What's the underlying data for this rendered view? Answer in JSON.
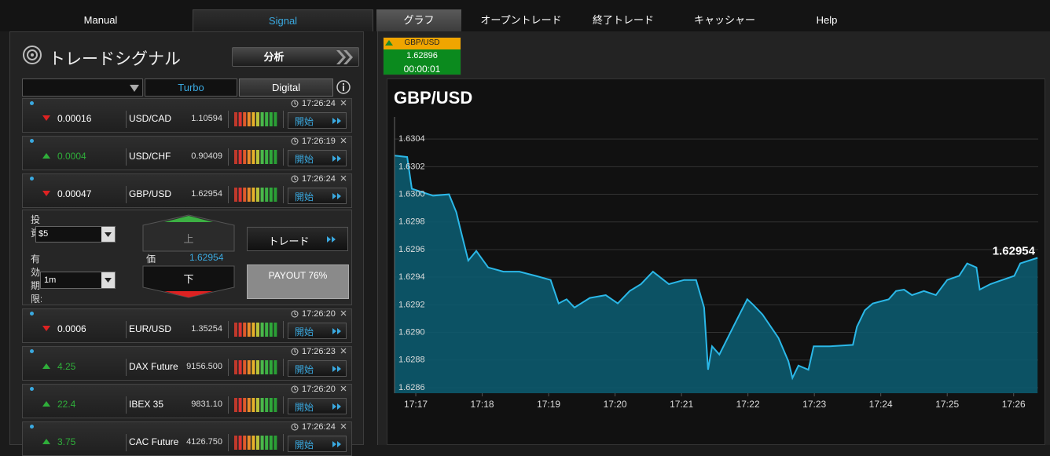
{
  "nav": {
    "tabs": [
      "Manual",
      "Signal",
      "グラフ",
      "オープントレード",
      "終了トレード",
      "キャッシャー",
      "Help"
    ]
  },
  "signal_panel": {
    "title": "トレードシグナル",
    "analyze_button": "分析",
    "filters": [
      "Turbo",
      "Digital"
    ],
    "signals": [
      {
        "direction": "down",
        "change": "0.00016",
        "symbol": "USD/CAD",
        "price": "1.10594",
        "time": "17:26:24",
        "button": "開始"
      },
      {
        "direction": "up",
        "change": "0.0004",
        "symbol": "USD/CHF",
        "price": "0.90409",
        "time": "17:26:19",
        "button": "開始"
      },
      {
        "direction": "down",
        "change": "0.00047",
        "symbol": "GBP/USD",
        "price": "1.62954",
        "time": "17:26:24",
        "button": "開始",
        "trade_form": {
          "invest_label": "投資",
          "invest_value": "$5",
          "expiry_label": "有効期限:",
          "expiry_value": "1m",
          "up_button": "上",
          "down_button": "下",
          "price_label": "価",
          "price": "1.62954",
          "trade_button": "トレード",
          "payout": "PAYOUT 76%"
        }
      },
      {
        "direction": "down",
        "change": "0.0006",
        "symbol": "EUR/USD",
        "price": "1.35254",
        "time": "17:26:20",
        "button": "開始"
      },
      {
        "direction": "up",
        "change": "4.25",
        "symbol": "DAX Future",
        "price": "9156.500",
        "time": "17:26:23",
        "button": "開始"
      },
      {
        "direction": "up",
        "change": "22.4",
        "symbol": "IBEX 35",
        "price": "9831.10",
        "time": "17:26:20",
        "button": "開始"
      },
      {
        "direction": "up",
        "change": "3.75",
        "symbol": "CAC Future",
        "price": "4126.750",
        "time": "17:26:24",
        "button": "開始"
      }
    ]
  },
  "ticker": {
    "symbol": "GBP/USD",
    "price": "1.62896",
    "timer": "00:00:01"
  },
  "chart_data": {
    "type": "area",
    "title": "GBP/USD",
    "x": [
      1036.68,
      1036.87,
      1036.94,
      1037.26,
      1037.5,
      1037.61,
      1037.67,
      1037.79,
      1037.91,
      1038.09,
      1038.32,
      1038.56,
      1038.8,
      1039.03,
      1039.15,
      1039.27,
      1039.39,
      1039.62,
      1039.86,
      1040.04,
      1040.22,
      1040.39,
      1040.57,
      1040.81,
      1041.04,
      1041.22,
      1041.34,
      1041.4,
      1041.46,
      1041.57,
      1041.81,
      1041.99,
      1042.08,
      1042.22,
      1042.46,
      1042.61,
      1042.67,
      1042.76,
      1042.91,
      1042.99,
      1043.23,
      1043.58,
      1043.64,
      1043.76,
      1043.88,
      1044.12,
      1044.23,
      1044.35,
      1044.47,
      1044.65,
      1044.83,
      1045,
      1045.18,
      1045.3,
      1045.44,
      1045.49,
      1045.65,
      1045.83,
      1046.01,
      1046.1,
      1046.36
    ],
    "series": [
      {
        "color": "#2bb8e8",
        "fill_color": "#0c5a6e",
        "values": [
          1.63028,
          1.63027,
          1.63004,
          1.62999,
          1.63,
          1.62987,
          1.62975,
          1.62952,
          1.62959,
          1.62947,
          1.62944,
          1.62944,
          1.62941,
          1.62938,
          1.62921,
          1.62924,
          1.62918,
          1.62925,
          1.62927,
          1.62921,
          1.6293,
          1.62935,
          1.62944,
          1.62935,
          1.62938,
          1.62938,
          1.62918,
          1.62873,
          1.6289,
          1.62884,
          1.62907,
          1.62924,
          1.6292,
          1.62913,
          1.62896,
          1.62879,
          1.62867,
          1.62876,
          1.62873,
          1.6289,
          1.6289,
          1.62891,
          1.62904,
          1.62916,
          1.62921,
          1.62924,
          1.6293,
          1.62931,
          1.62927,
          1.6293,
          1.62927,
          1.62938,
          1.62941,
          1.6295,
          1.62947,
          1.62931,
          1.62935,
          1.62938,
          1.62941,
          1.6295,
          1.62954
        ]
      }
    ],
    "xlim": [
      1036.68,
      1046.37
    ],
    "ylim": [
      1.62856,
      1.63056
    ],
    "xticks": [
      {
        "value": 1037,
        "label": "17:17"
      },
      {
        "value": 1038,
        "label": "17:18"
      },
      {
        "value": 1039,
        "label": "17:19"
      },
      {
        "value": 1040,
        "label": "17:20"
      },
      {
        "value": 1041,
        "label": "17:21"
      },
      {
        "value": 1042,
        "label": "17:22"
      },
      {
        "value": 1043,
        "label": "17:23"
      },
      {
        "value": 1044,
        "label": "17:24"
      },
      {
        "value": 1045,
        "label": "17:25"
      },
      {
        "value": 1046,
        "label": "17:26"
      }
    ],
    "yticks": [
      1.6304,
      1.6302,
      {
        "value": 1.63,
        "label": "1.6300"
      },
      1.6298,
      1.6296,
      1.6294,
      1.6292,
      {
        "value": 1.629,
        "label": "1.6290"
      },
      1.6288,
      1.6286
    ],
    "grid": true
  }
}
